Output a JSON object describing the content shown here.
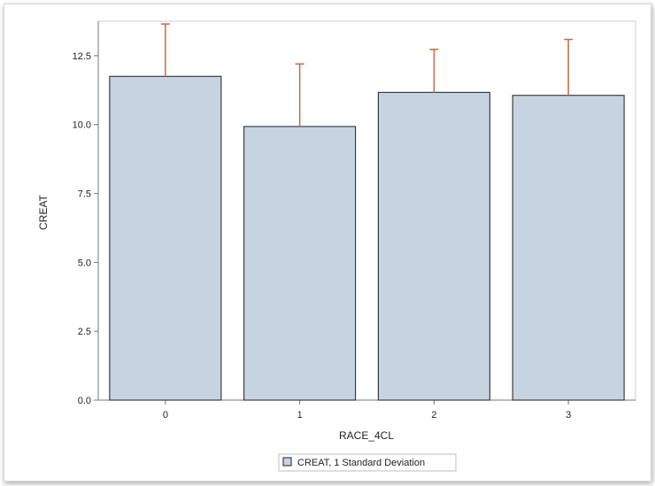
{
  "chart_data": {
    "type": "bar",
    "categories": [
      "0",
      "1",
      "2",
      "3"
    ],
    "series": [
      {
        "name": "CREAT, 1 Standard Deviation",
        "values": [
          11.75,
          9.93,
          11.17,
          11.06
        ],
        "std_dev": [
          1.9,
          2.27,
          1.56,
          2.03
        ]
      }
    ],
    "xlabel": "RACE_4CL",
    "ylabel": "CREAT",
    "ylim": [
      0,
      13.75
    ],
    "yticks": [
      "0.0",
      "2.5",
      "5.0",
      "7.5",
      "10.0",
      "12.5"
    ],
    "legend": {
      "label": "CREAT, 1 Standard Deviation",
      "placement": "bottom-center"
    },
    "grid": false,
    "colors": {
      "bar_fill": "#c6d3e1",
      "bar_stroke": "#1f1f1f",
      "error_bar": "#c8674a",
      "axis": "#777777"
    }
  }
}
